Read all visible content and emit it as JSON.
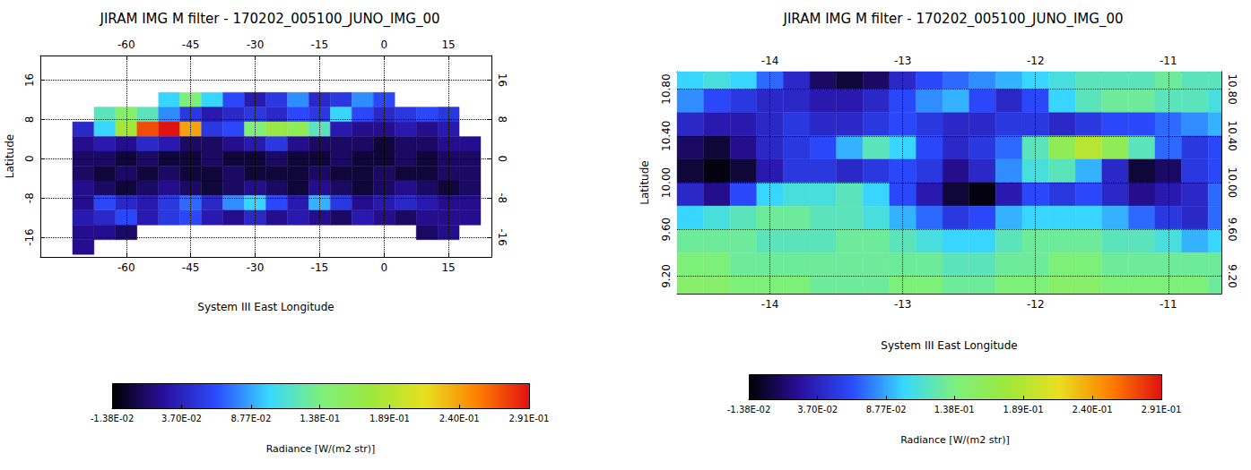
{
  "chart_data": [
    {
      "type": "heatmap",
      "title": "JIRAM IMG M filter - 170202_005100_JUNO_IMG_00",
      "x_label": "System III East Longitude",
      "y_label": "Latitude",
      "xlim": [
        -80,
        25
      ],
      "ylim": [
        -20,
        21
      ],
      "xticks": [
        -60,
        -45,
        -30,
        -15,
        0,
        15
      ],
      "yticks": [
        -16,
        -8,
        0,
        8,
        16
      ],
      "grid": true,
      "x": [
        -75,
        -70,
        -65,
        -60,
        -55,
        -50,
        -45,
        -40,
        -35,
        -30,
        -25,
        -20,
        -15,
        -10,
        -5,
        0,
        5,
        10,
        15,
        20
      ],
      "y": [
        12,
        9,
        6,
        3,
        0,
        -3,
        -6,
        -9,
        -12,
        -15,
        -18
      ],
      "cells": [
        [
          null,
          null,
          null,
          null,
          null,
          0.1,
          0.14,
          0.1,
          0.06,
          0.03,
          0.05,
          0.08,
          0.04,
          0.05,
          0.08,
          0.06,
          null,
          null,
          null,
          null
        ],
        [
          null,
          null,
          0.12,
          0.15,
          0.12,
          0.08,
          0.05,
          0.03,
          0.04,
          0.05,
          0.04,
          0.06,
          0.05,
          0.1,
          0.06,
          0.04,
          0.05,
          0.06,
          0.05,
          null
        ],
        [
          null,
          0.04,
          0.1,
          0.18,
          0.27,
          0.29,
          0.24,
          0.05,
          0.06,
          0.14,
          0.17,
          0.16,
          0.12,
          0.03,
          0.02,
          0.02,
          0.03,
          0.02,
          0.03,
          null
        ],
        [
          null,
          0.02,
          0.03,
          0.02,
          0.04,
          0.03,
          0.01,
          0.01,
          0.02,
          0.03,
          0.05,
          0.02,
          0.01,
          0.01,
          0.01,
          0.0,
          0.01,
          0.01,
          0.02,
          0.02
        ],
        [
          null,
          0.01,
          0.01,
          0.0,
          0.01,
          0.0,
          0.0,
          0.01,
          0.0,
          0.0,
          0.01,
          0.0,
          0.0,
          0.01,
          0.0,
          0.0,
          0.01,
          0.0,
          0.01,
          0.01
        ],
        [
          null,
          0.01,
          0.0,
          0.01,
          0.0,
          0.01,
          0.0,
          0.0,
          0.01,
          0.0,
          0.0,
          0.0,
          0.01,
          0.0,
          0.0,
          0.01,
          0.0,
          0.0,
          0.01,
          0.01
        ],
        [
          null,
          0.02,
          0.01,
          0.0,
          0.01,
          0.02,
          0.01,
          0.0,
          0.01,
          0.02,
          0.01,
          0.0,
          0.02,
          0.01,
          0.0,
          0.01,
          0.02,
          0.01,
          0.0,
          0.01
        ],
        [
          null,
          0.02,
          0.06,
          0.04,
          0.03,
          0.05,
          0.07,
          0.04,
          0.08,
          0.1,
          0.06,
          0.03,
          0.09,
          0.05,
          0.02,
          0.03,
          0.04,
          0.03,
          0.02,
          0.02
        ],
        [
          null,
          0.03,
          0.04,
          0.06,
          0.03,
          0.05,
          0.06,
          0.03,
          0.02,
          0.04,
          0.02,
          0.03,
          0.02,
          0.01,
          0.03,
          0.02,
          0.01,
          0.02,
          0.02,
          0.02
        ],
        [
          null,
          0.02,
          0.02,
          0.01,
          null,
          null,
          null,
          null,
          null,
          null,
          null,
          null,
          null,
          null,
          null,
          null,
          null,
          0.01,
          0.02,
          null
        ],
        [
          null,
          0.02,
          null,
          null,
          null,
          null,
          null,
          null,
          null,
          null,
          null,
          null,
          null,
          null,
          null,
          null,
          null,
          null,
          null,
          null
        ]
      ],
      "colorbar": {
        "range": [
          -0.0138,
          0.291
        ],
        "ticks": [
          {
            "value": -0.0138,
            "label": "-1.38E-02"
          },
          {
            "value": 0.037,
            "label": "3.70E-02"
          },
          {
            "value": 0.0877,
            "label": "8.77E-02"
          },
          {
            "value": 0.138,
            "label": "1.38E-01"
          },
          {
            "value": 0.189,
            "label": "1.89E-01"
          },
          {
            "value": 0.24,
            "label": "2.40E-01"
          },
          {
            "value": 0.291,
            "label": "2.91E-01"
          }
        ],
        "label": "Radiance [W/(m2 str)]"
      }
    },
    {
      "type": "heatmap",
      "title": "JIRAM IMG M filter - 170202_005100_JUNO_IMG_00",
      "x_label": "System III East Longitude",
      "y_label": "Latitude",
      "xlim": [
        -14.7,
        -10.6
      ],
      "ylim": [
        9.05,
        10.95
      ],
      "xticks": [
        -14,
        -13,
        -12,
        -11
      ],
      "yticks": [
        {
          "value": 9.2,
          "label": "9.20"
        },
        {
          "value": 9.6,
          "label": "9.60"
        },
        {
          "value": 10.0,
          "label": "10.00"
        },
        {
          "value": 10.4,
          "label": "10.40"
        },
        {
          "value": 10.8,
          "label": "10.80"
        }
      ],
      "grid": true,
      "x": [
        -14.6,
        -14.4,
        -14.2,
        -14.0,
        -13.8,
        -13.6,
        -13.4,
        -13.2,
        -13.0,
        -12.8,
        -12.6,
        -12.4,
        -12.2,
        -12.0,
        -11.8,
        -11.6,
        -11.4,
        -11.2,
        -11.0,
        -10.8,
        -10.6
      ],
      "y": [
        10.9,
        10.7,
        10.5,
        10.3,
        10.1,
        9.9,
        9.7,
        9.5,
        9.3,
        9.1
      ],
      "cells": [
        [
          0.1,
          0.11,
          0.1,
          0.07,
          0.04,
          0.01,
          0.0,
          0.01,
          0.04,
          0.06,
          0.07,
          0.08,
          0.09,
          0.1,
          0.11,
          0.12,
          0.12,
          0.12,
          0.13,
          0.12,
          0.12
        ],
        [
          0.08,
          0.06,
          0.05,
          0.04,
          0.04,
          0.03,
          0.03,
          0.04,
          0.06,
          0.08,
          0.09,
          0.06,
          0.04,
          0.06,
          0.1,
          0.12,
          0.13,
          0.13,
          0.12,
          0.12,
          0.11
        ],
        [
          0.04,
          0.03,
          0.03,
          0.04,
          0.05,
          0.04,
          0.04,
          0.05,
          0.06,
          0.05,
          0.04,
          0.04,
          0.05,
          0.05,
          0.04,
          0.05,
          0.06,
          0.06,
          0.07,
          0.08,
          0.09
        ],
        [
          0.01,
          0.0,
          0.02,
          0.04,
          0.05,
          0.06,
          0.09,
          0.12,
          0.1,
          0.06,
          0.04,
          0.05,
          0.07,
          0.12,
          0.16,
          0.19,
          0.16,
          0.12,
          0.07,
          0.05,
          0.06
        ],
        [
          0.0,
          -0.01,
          0.0,
          0.03,
          0.05,
          0.05,
          0.04,
          0.05,
          0.06,
          0.05,
          0.02,
          0.04,
          0.08,
          0.11,
          0.12,
          0.09,
          0.04,
          0.0,
          0.01,
          0.05,
          0.06
        ],
        [
          0.04,
          0.02,
          0.06,
          0.1,
          0.11,
          0.11,
          0.12,
          0.1,
          0.06,
          0.03,
          0.0,
          -0.01,
          0.03,
          0.06,
          0.05,
          0.06,
          0.04,
          0.02,
          0.03,
          0.04,
          0.07
        ],
        [
          0.1,
          0.11,
          0.12,
          0.13,
          0.13,
          0.12,
          0.12,
          0.11,
          0.09,
          0.07,
          0.05,
          0.06,
          0.09,
          0.1,
          0.1,
          0.1,
          0.09,
          0.07,
          0.05,
          0.04,
          0.07
        ],
        [
          0.13,
          0.13,
          0.13,
          0.12,
          0.12,
          0.12,
          0.13,
          0.13,
          0.12,
          0.11,
          0.1,
          0.1,
          0.12,
          0.13,
          0.13,
          0.13,
          0.12,
          0.12,
          0.11,
          0.09,
          0.1
        ],
        [
          0.14,
          0.14,
          0.13,
          0.13,
          0.13,
          0.13,
          0.13,
          0.13,
          0.13,
          0.13,
          0.12,
          0.12,
          0.13,
          0.13,
          0.14,
          0.14,
          0.13,
          0.13,
          0.13,
          0.13,
          0.13
        ],
        [
          0.15,
          0.15,
          0.14,
          0.14,
          0.14,
          0.13,
          0.13,
          0.13,
          0.14,
          0.14,
          0.13,
          0.13,
          0.14,
          0.14,
          0.15,
          0.15,
          0.14,
          0.14,
          0.14,
          0.14,
          0.13
        ]
      ],
      "colorbar": {
        "range": [
          -0.0138,
          0.291
        ],
        "ticks": [
          {
            "value": -0.0138,
            "label": "-1.38E-02"
          },
          {
            "value": 0.037,
            "label": "3.70E-02"
          },
          {
            "value": 0.0877,
            "label": "8.77E-02"
          },
          {
            "value": 0.138,
            "label": "1.38E-01"
          },
          {
            "value": 0.189,
            "label": "1.89E-01"
          },
          {
            "value": 0.24,
            "label": "2.40E-01"
          },
          {
            "value": 0.291,
            "label": "2.91E-01"
          }
        ],
        "label": "Radiance [W/(m2 str)]"
      }
    }
  ]
}
